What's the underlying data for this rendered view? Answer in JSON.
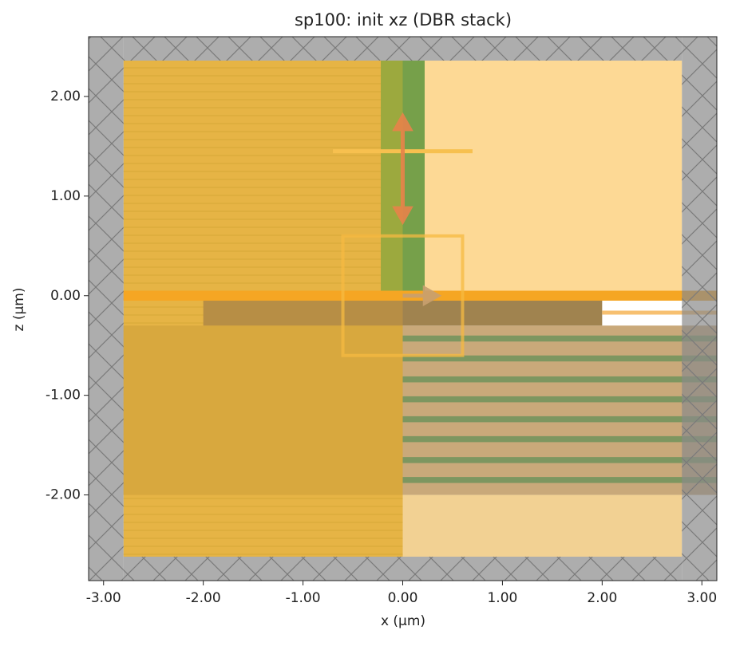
{
  "chart_data": {
    "type": "structure",
    "title": "sp100: init xz (DBR stack)",
    "xlabel": "x (µm)",
    "ylabel": "z (µm)",
    "xlim": [
      -3.15,
      3.15
    ],
    "ylim": [
      -2.86,
      2.6
    ],
    "xticks": [
      {
        "value": -3,
        "label": "-3.00"
      },
      {
        "value": -2,
        "label": "-2.00"
      },
      {
        "value": -1,
        "label": "-1.00"
      },
      {
        "value": 0,
        "label": "0.00"
      },
      {
        "value": 1,
        "label": "1.00"
      },
      {
        "value": 2,
        "label": "2.00"
      },
      {
        "value": 3,
        "label": "3.00"
      }
    ],
    "yticks": [
      {
        "value": -2,
        "label": "-2.00"
      },
      {
        "value": -1,
        "label": "-1.00"
      },
      {
        "value": 0,
        "label": "0.00"
      },
      {
        "value": 1,
        "label": "1.00"
      },
      {
        "value": 2,
        "label": "2.00"
      }
    ],
    "rects": [
      {
        "x": [
          -2.8,
          0
        ],
        "z": [
          -2.62,
          2.36
        ],
        "color": "#e6b445"
      },
      {
        "x": [
          0,
          2.8
        ],
        "z": [
          0,
          2.36
        ],
        "color": "#fdd995"
      },
      {
        "x": [
          0,
          2.8
        ],
        "z": [
          -2.62,
          -2.0
        ],
        "color": "#f2d193"
      },
      {
        "x": [
          0,
          3.15
        ],
        "z": [
          -2.0,
          -0.3
        ],
        "color": "#c9a97a"
      },
      {
        "x": [
          -2.8,
          0
        ],
        "z": [
          -2.0,
          -0.3
        ],
        "color": "#d8a83e"
      },
      {
        "x": [
          -0.22,
          0
        ],
        "z": [
          0,
          2.36
        ],
        "color": "#9ca93e"
      },
      {
        "x": [
          0,
          0.22
        ],
        "z": [
          0,
          2.36
        ],
        "color": "#76a04a"
      },
      {
        "x": [
          -2.0,
          0
        ],
        "z": [
          -0.3,
          -0.05
        ],
        "color": "#b78e45"
      },
      {
        "x": [
          0,
          2.0
        ],
        "z": [
          -0.3,
          -0.05
        ],
        "color": "#a0834f"
      },
      {
        "x": [
          -2.8,
          3.15
        ],
        "z": [
          -0.05,
          0.05
        ],
        "color": "#f5a623"
      },
      {
        "x": [
          0,
          3.15
        ],
        "z": [
          -0.46,
          -0.4
        ],
        "color": "#7d9660"
      },
      {
        "x": [
          0,
          3.15
        ],
        "z": [
          -0.66,
          -0.6
        ],
        "color": "#7d9660"
      },
      {
        "x": [
          0,
          3.15
        ],
        "z": [
          -0.87,
          -0.81
        ],
        "color": "#7d9660"
      },
      {
        "x": [
          0,
          3.15
        ],
        "z": [
          -1.07,
          -1.01
        ],
        "color": "#7d9660"
      },
      {
        "x": [
          0,
          3.15
        ],
        "z": [
          -1.27,
          -1.21
        ],
        "color": "#7d9660"
      },
      {
        "x": [
          0,
          3.15
        ],
        "z": [
          -1.47,
          -1.41
        ],
        "color": "#7d9660"
      },
      {
        "x": [
          0,
          3.15
        ],
        "z": [
          -1.68,
          -1.62
        ],
        "color": "#7d9660"
      },
      {
        "x": [
          0,
          3.15
        ],
        "z": [
          -1.88,
          -1.82
        ],
        "color": "#7d9660"
      },
      {
        "x": [
          -0.7,
          0.7
        ],
        "z": [
          1.43,
          1.47
        ],
        "color": "#f7c04f"
      },
      {
        "x": [
          2.0,
          3.15
        ],
        "z": [
          -0.19,
          -0.15
        ],
        "color": "#f7c070"
      }
    ],
    "boxes": [
      {
        "x": [
          -0.6,
          0.6
        ],
        "z": [
          -0.6,
          0.6
        ],
        "color": "#f5b942"
      }
    ],
    "arrows": [
      {
        "x": [
          0,
          0
        ],
        "z": [
          0.75,
          1.8
        ],
        "color": "#e8834a"
      },
      {
        "x": [
          0,
          0.35
        ],
        "z": [
          0,
          0
        ],
        "color": "#c8a070"
      }
    ],
    "bounds": [
      {
        "x": [
          -3.15,
          -2.8
        ],
        "z": [
          -2.86,
          2.6
        ]
      },
      {
        "x": [
          2.8,
          3.15
        ],
        "z": [
          -2.86,
          2.6
        ]
      },
      {
        "x": [
          -2.8,
          2.8
        ],
        "z": [
          2.36,
          2.6
        ]
      },
      {
        "x": [
          -2.8,
          2.8
        ],
        "z": [
          -2.86,
          -2.62
        ]
      }
    ]
  }
}
